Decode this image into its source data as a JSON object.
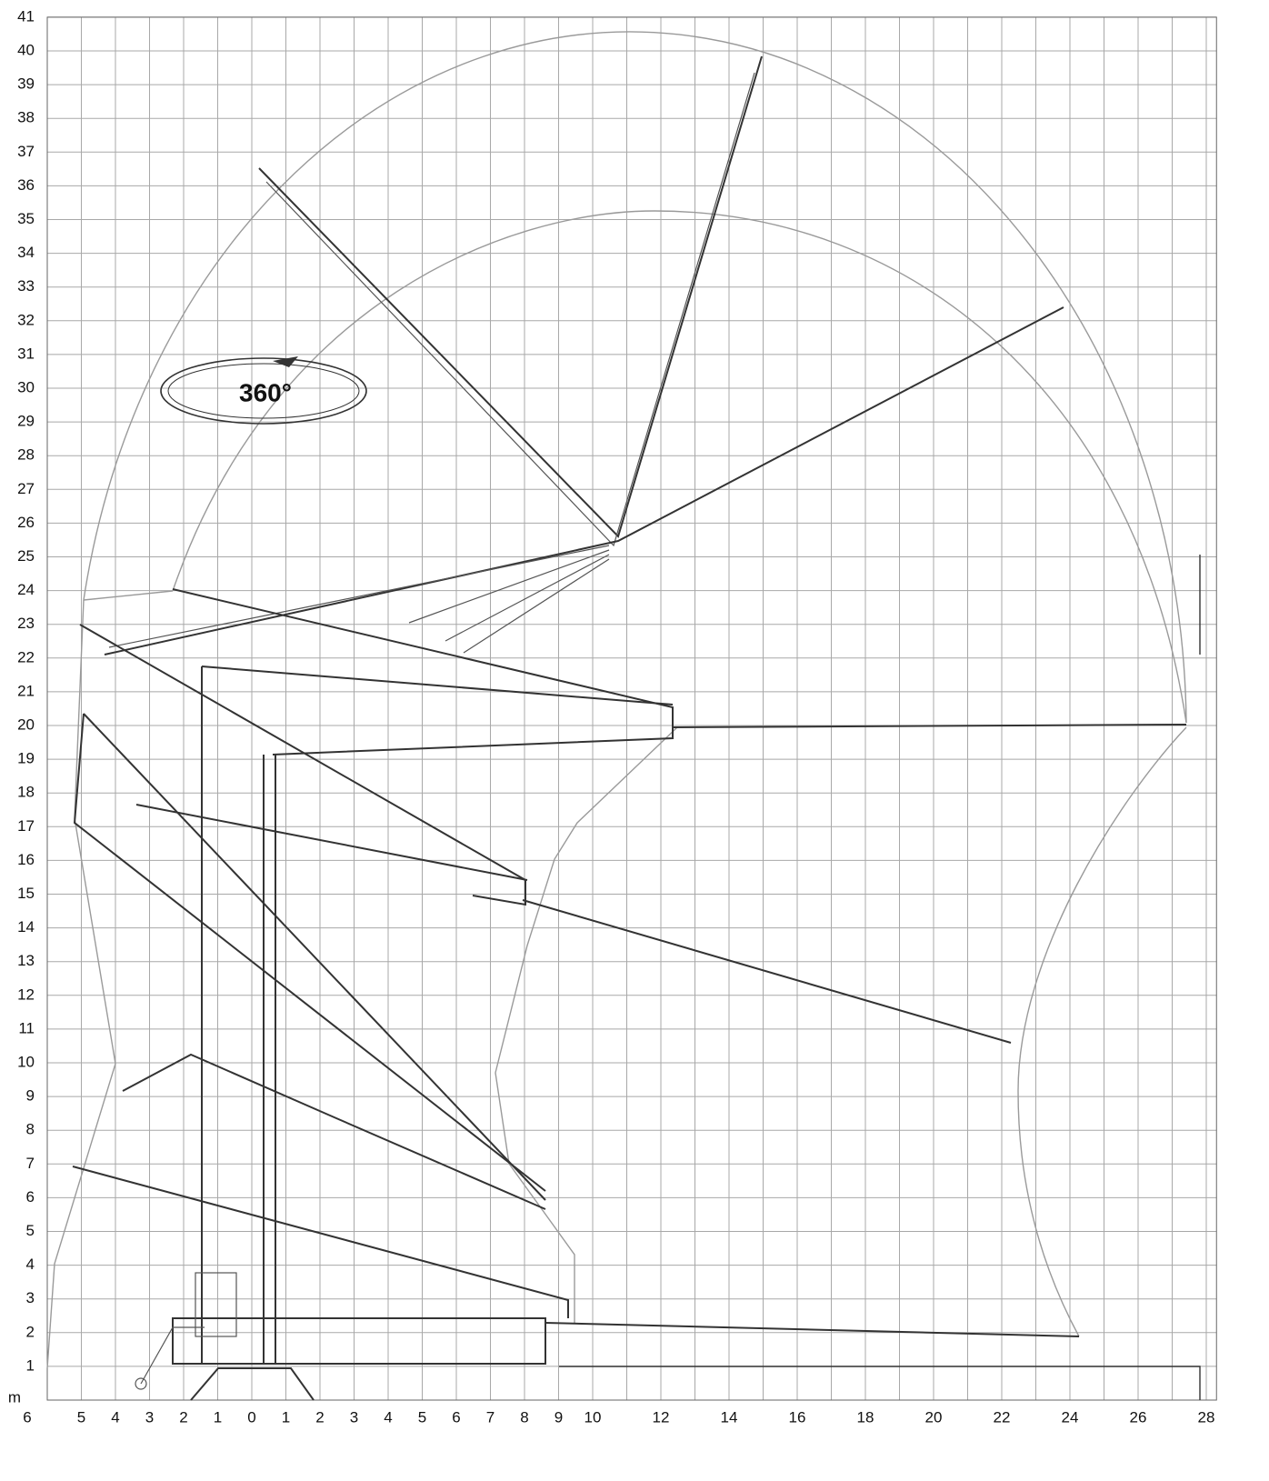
{
  "diagram": {
    "y_axis_labels": [
      "1",
      "2",
      "3",
      "4",
      "5",
      "6",
      "7",
      "8",
      "9",
      "10",
      "11",
      "12",
      "13",
      "14",
      "15",
      "16",
      "17",
      "18",
      "19",
      "20",
      "21",
      "22",
      "23",
      "24",
      "25",
      "26",
      "27",
      "28",
      "29",
      "30",
      "31",
      "32",
      "33",
      "34",
      "35",
      "36",
      "37",
      "38",
      "39",
      "40",
      "41"
    ],
    "unit": "m",
    "x_axis_labels": [
      "6",
      "5",
      "4",
      "3",
      "2",
      "1",
      "0",
      "1",
      "2",
      "3",
      "4",
      "5",
      "6",
      "7",
      "8",
      "9",
      "10",
      "12",
      "14",
      "16",
      "18",
      "20",
      "22",
      "24",
      "26",
      "28"
    ],
    "rotation_label": "360°"
  }
}
